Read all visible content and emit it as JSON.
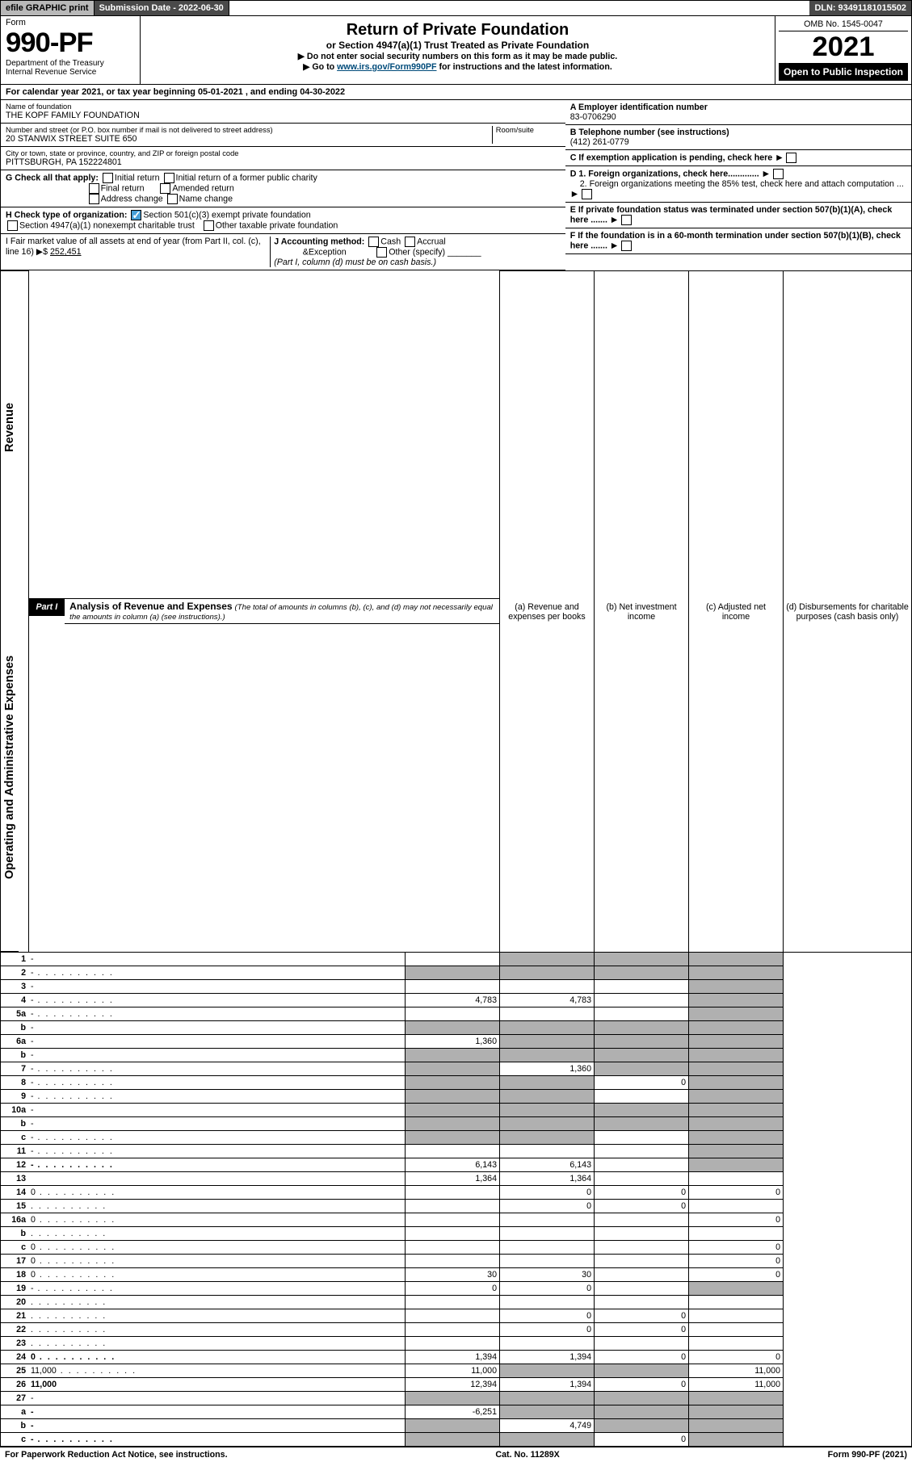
{
  "topbar": {
    "efile": "efile GRAPHIC print",
    "subdate_label": "Submission Date - 2022-06-30",
    "dln": "DLN: 93491181015502"
  },
  "header": {
    "form": "Form",
    "formno": "990-PF",
    "dept": "Department of the Treasury",
    "irs": "Internal Revenue Service",
    "title": "Return of Private Foundation",
    "subtitle": "or Section 4947(a)(1) Trust Treated as Private Foundation",
    "instr1": "▶ Do not enter social security numbers on this form as it may be made public.",
    "instr2": "▶ Go to ",
    "instr2_link": "www.irs.gov/Form990PF",
    "instr2_tail": " for instructions and the latest information.",
    "omb": "OMB No. 1545-0047",
    "year": "2021",
    "open": "Open to Public Inspection"
  },
  "calyear": "For calendar year 2021, or tax year beginning 05-01-2021              , and ending 04-30-2022",
  "id": {
    "name_label": "Name of foundation",
    "name": "THE KOPF FAMILY FOUNDATION",
    "addr_label": "Number and street (or P.O. box number if mail is not delivered to street address)",
    "addr": "20 STANWIX STREET SUITE 650",
    "room": "Room/suite",
    "city_label": "City or town, state or province, country, and ZIP or foreign postal code",
    "city": "PITTSBURGH, PA  152224801",
    "A_label": "A Employer identification number",
    "A": "83-0706290",
    "B_label": "B Telephone number (see instructions)",
    "B": "(412) 261-0779",
    "C": "C If exemption application is pending, check here",
    "D1": "D 1. Foreign organizations, check here.............",
    "D2": "2. Foreign organizations meeting the 85% test, check here and attach computation ...",
    "E": "E  If private foundation status was terminated under section 507(b)(1)(A), check here .......",
    "F": "F  If the foundation is in a 60-month termination under section 507(b)(1)(B), check here .......",
    "G": "G Check all that apply:",
    "G_opts": [
      "Initial return",
      "Initial return of a former public charity",
      "Final return",
      "Amended return",
      "Address change",
      "Name change"
    ],
    "H": "H Check type of organization:",
    "H1": "Section 501(c)(3) exempt private foundation",
    "H2": "Section 4947(a)(1) nonexempt charitable trust",
    "H3": "Other taxable private foundation",
    "I": "I Fair market value of all assets at end of year (from Part II, col. (c), line 16)",
    "I_val": "252,451",
    "J": "J Accounting method:",
    "J_cash": "Cash",
    "J_accr": "Accrual",
    "J_other": "Other (specify)",
    "J_note": "(Part I, column (d) must be on cash basis.)"
  },
  "part1": {
    "label": "Part I",
    "title": "Analysis of Revenue and Expenses",
    "note": "(The total of amounts in columns (b), (c), and (d) may not necessarily equal the amounts in column (a) (see instructions).)",
    "cols": {
      "a": "(a)   Revenue and expenses per books",
      "b": "(b)   Net investment income",
      "c": "(c)   Adjusted net income",
      "d": "(d)   Disbursements for charitable purposes (cash basis only)"
    }
  },
  "sections": {
    "rev": "Revenue",
    "exp": "Operating and Administrative Expenses"
  },
  "rows": [
    {
      "n": "1",
      "d": "-",
      "a": "",
      "b": "-",
      "c": "-"
    },
    {
      "n": "2",
      "d": "-",
      "a": "-",
      "b": "-",
      "c": "-",
      "dotted": true
    },
    {
      "n": "3",
      "d": "-",
      "a": "",
      "b": "",
      "c": ""
    },
    {
      "n": "4",
      "d": "-",
      "a": "4,783",
      "b": "4,783",
      "c": "",
      "dotted": true
    },
    {
      "n": "5a",
      "d": "-",
      "a": "",
      "b": "",
      "c": "",
      "dotted": true
    },
    {
      "n": "b",
      "d": "-",
      "a": "-",
      "b": "-",
      "c": "-"
    },
    {
      "n": "6a",
      "d": "-",
      "a": "1,360",
      "b": "-",
      "c": "-"
    },
    {
      "n": "b",
      "d": "-",
      "a": "-",
      "b": "-",
      "c": "-"
    },
    {
      "n": "7",
      "d": "-",
      "a": "-",
      "b": "1,360",
      "c": "-",
      "dotted": true
    },
    {
      "n": "8",
      "d": "-",
      "a": "-",
      "b": "-",
      "c": "0",
      "dotted": true
    },
    {
      "n": "9",
      "d": "-",
      "a": "-",
      "b": "-",
      "c": "",
      "dotted": true
    },
    {
      "n": "10a",
      "d": "-",
      "a": "-",
      "b": "-",
      "c": "-"
    },
    {
      "n": "b",
      "d": "-",
      "a": "-",
      "b": "-",
      "c": "-"
    },
    {
      "n": "c",
      "d": "-",
      "a": "-",
      "b": "-",
      "c": "",
      "dotted": true
    },
    {
      "n": "11",
      "d": "-",
      "a": "",
      "b": "",
      "c": "",
      "dotted": true
    },
    {
      "n": "12",
      "d": "-",
      "a": "6,143",
      "b": "6,143",
      "c": "",
      "bold": true,
      "dotted": true
    },
    {
      "n": "13",
      "d": "",
      "a": "1,364",
      "b": "1,364",
      "c": ""
    },
    {
      "n": "14",
      "d": "0",
      "a": "",
      "b": "0",
      "c": "0",
      "dotted": true
    },
    {
      "n": "15",
      "d": "",
      "a": "",
      "b": "0",
      "c": "0",
      "dotted": true
    },
    {
      "n": "16a",
      "d": "0",
      "a": "",
      "b": "",
      "c": "",
      "dotted": true
    },
    {
      "n": "b",
      "d": "",
      "a": "",
      "b": "",
      "c": "",
      "dotted": true
    },
    {
      "n": "c",
      "d": "0",
      "a": "",
      "b": "",
      "c": "",
      "dotted": true
    },
    {
      "n": "17",
      "d": "0",
      "a": "",
      "b": "",
      "c": "",
      "dotted": true
    },
    {
      "n": "18",
      "d": "0",
      "a": "30",
      "b": "30",
      "c": "",
      "dotted": true
    },
    {
      "n": "19",
      "d": "-",
      "a": "0",
      "b": "0",
      "c": "",
      "dotted": true
    },
    {
      "n": "20",
      "d": "",
      "a": "",
      "b": "",
      "c": "",
      "dotted": true
    },
    {
      "n": "21",
      "d": "",
      "a": "",
      "b": "0",
      "c": "0",
      "dotted": true
    },
    {
      "n": "22",
      "d": "",
      "a": "",
      "b": "0",
      "c": "0",
      "dotted": true
    },
    {
      "n": "23",
      "d": "",
      "a": "",
      "b": "",
      "c": "",
      "dotted": true
    },
    {
      "n": "24",
      "d": "0",
      "a": "1,394",
      "b": "1,394",
      "c": "0",
      "bold": true,
      "dotted": true
    },
    {
      "n": "25",
      "d": "11,000",
      "a": "11,000",
      "b": "-",
      "c": "-",
      "dotted": true
    },
    {
      "n": "26",
      "d": "11,000",
      "a": "12,394",
      "b": "1,394",
      "c": "0",
      "bold": true
    },
    {
      "n": "27",
      "d": "-",
      "a": "-",
      "b": "-",
      "c": "-"
    },
    {
      "n": "a",
      "d": "-",
      "a": "-6,251",
      "b": "-",
      "c": "-",
      "bold": true
    },
    {
      "n": "b",
      "d": "-",
      "a": "-",
      "b": "4,749",
      "c": "-",
      "bold": true
    },
    {
      "n": "c",
      "d": "-",
      "a": "-",
      "b": "-",
      "c": "0",
      "bold": true,
      "dotted": true
    }
  ],
  "footer": {
    "left": "For Paperwork Reduction Act Notice, see instructions.",
    "mid": "Cat. No. 11289X",
    "right": "Form 990-PF (2021)"
  }
}
